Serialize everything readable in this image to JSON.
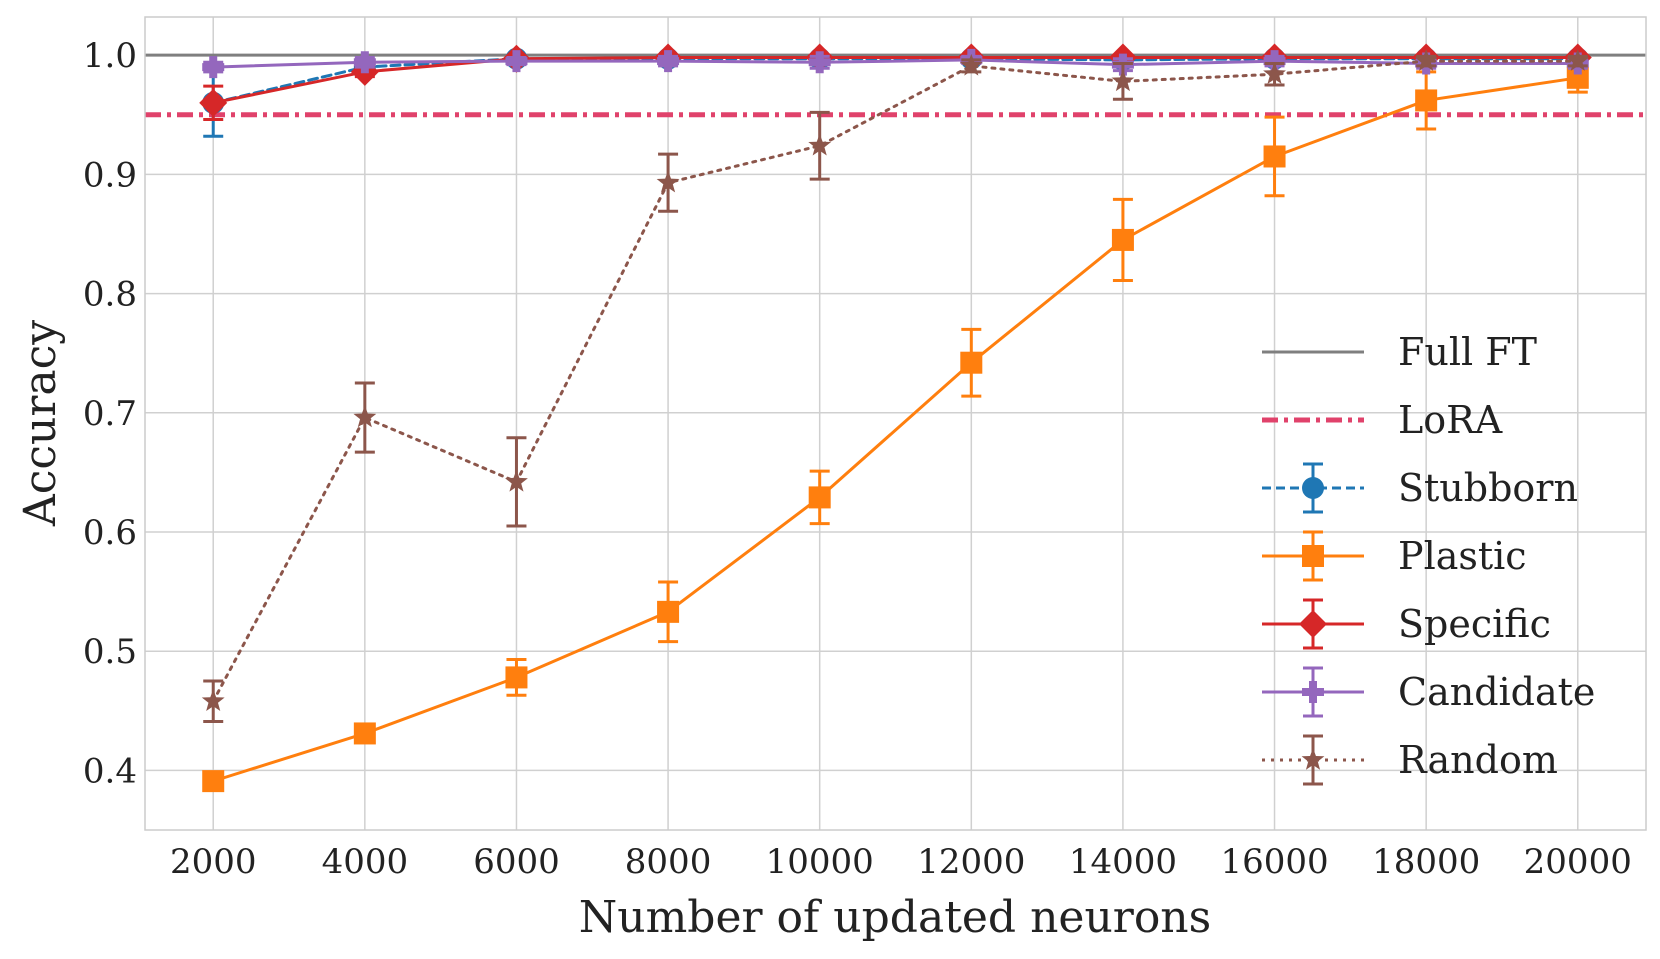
{
  "chart_data": {
    "type": "line",
    "title": "",
    "xlabel": "Number of updated neurons",
    "ylabel": "Accuracy",
    "x": [
      2000,
      4000,
      6000,
      8000,
      10000,
      12000,
      14000,
      16000,
      18000,
      20000
    ],
    "xlim": [
      1100,
      20900
    ],
    "ylim": [
      0.35,
      1.032
    ],
    "xticks": [
      "2000",
      "4000",
      "6000",
      "8000",
      "10000",
      "12000",
      "14000",
      "16000",
      "18000",
      "20000"
    ],
    "yticks": [
      {
        "value": 0.4,
        "label": "0.4"
      },
      {
        "value": 0.5,
        "label": "0.5"
      },
      {
        "value": 0.6,
        "label": "0.6"
      },
      {
        "value": 0.7,
        "label": "0.7"
      },
      {
        "value": 0.8,
        "label": "0.8"
      },
      {
        "value": 0.9,
        "label": "0.9"
      },
      {
        "value": 1.0,
        "label": "1.0"
      }
    ],
    "grid": true,
    "legend_position": "center-right",
    "reference_lines": [
      {
        "name": "Full FT",
        "value": 1.0,
        "color": "#7f7f7f",
        "style": "solid"
      },
      {
        "name": "LoRA",
        "value": 0.95,
        "color": "#e0426b",
        "style": "dashdot"
      }
    ],
    "series": [
      {
        "name": "Stubborn",
        "color": "#1f77b4",
        "style": "dashed",
        "marker": "circle",
        "values": [
          0.96,
          0.99,
          0.997,
          0.997,
          0.997,
          0.997,
          0.996,
          0.997,
          0.997,
          0.997
        ],
        "errors": [
          0.028,
          0.005,
          0.002,
          0.002,
          0.002,
          0.002,
          0.003,
          0.002,
          0.002,
          0.002
        ]
      },
      {
        "name": "Plastic",
        "color": "#ff7f0e",
        "style": "solid",
        "marker": "square",
        "values": [
          0.391,
          0.431,
          0.478,
          0.533,
          0.629,
          0.742,
          0.845,
          0.915,
          0.962,
          0.981
        ],
        "errors": [
          0.006,
          0.006,
          0.015,
          0.025,
          0.022,
          0.028,
          0.034,
          0.033,
          0.024,
          0.012
        ]
      },
      {
        "name": "Specific",
        "color": "#d62728",
        "style": "solid",
        "marker": "diamond",
        "values": [
          0.96,
          0.986,
          0.997,
          0.998,
          0.998,
          0.998,
          0.998,
          0.998,
          0.998,
          0.998
        ],
        "errors": [
          0.014,
          0.004,
          0.002,
          0.002,
          0.002,
          0.002,
          0.002,
          0.002,
          0.002,
          0.002
        ]
      },
      {
        "name": "Candidate",
        "color": "#9467bd",
        "style": "solid",
        "marker": "plus",
        "values": [
          0.99,
          0.994,
          0.995,
          0.995,
          0.994,
          0.996,
          0.992,
          0.995,
          0.993,
          0.993
        ],
        "errors": [
          0.004,
          0.004,
          0.003,
          0.004,
          0.005,
          0.003,
          0.005,
          0.004,
          0.004,
          0.004
        ]
      },
      {
        "name": "Random",
        "color": "#8c564b",
        "style": "dotted",
        "marker": "star",
        "values": [
          0.458,
          0.696,
          0.642,
          0.893,
          0.924,
          0.991,
          0.978,
          0.984,
          0.995,
          0.995
        ],
        "errors": [
          0.017,
          0.029,
          0.037,
          0.024,
          0.028,
          0.005,
          0.015,
          0.009,
          0.004,
          0.004
        ]
      }
    ]
  }
}
